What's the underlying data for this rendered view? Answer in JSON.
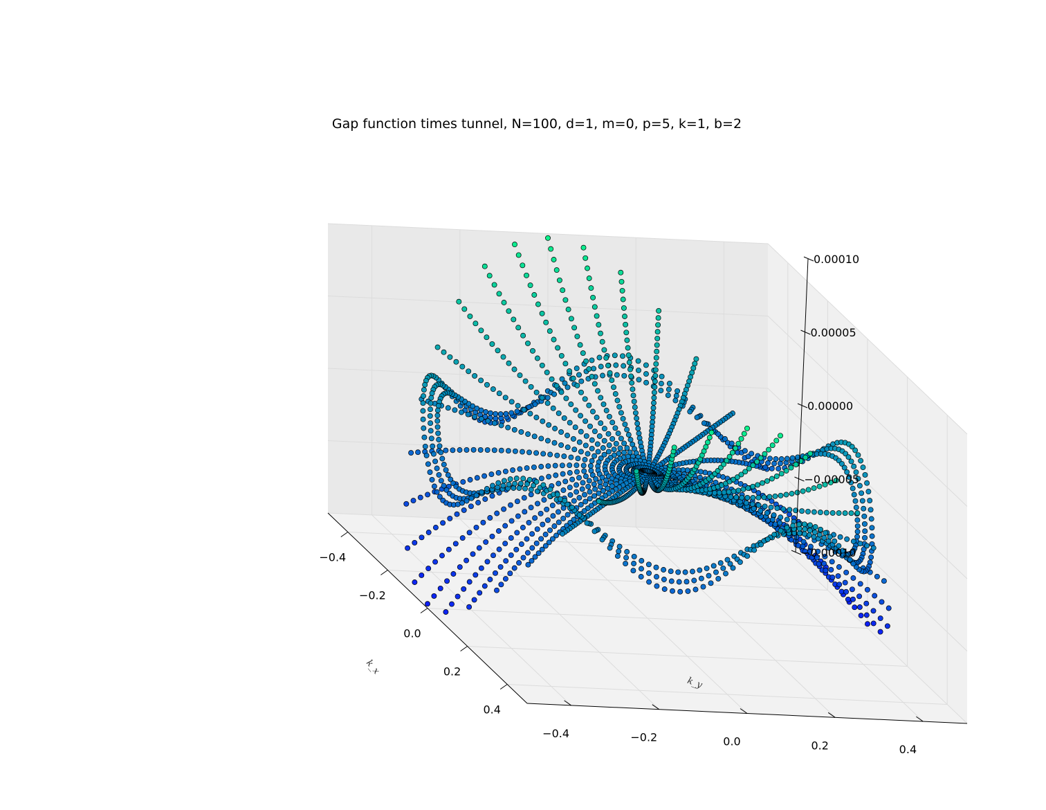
{
  "chart_data": {
    "type": "scatter",
    "projection": "3d",
    "title": "Gap function times tunnel, N=100, d=1, m=0, p=5, k=1, b=2",
    "xlabel": "k_x",
    "ylabel": "k_y",
    "zlabel": "",
    "xlim": [
      -0.5,
      0.5
    ],
    "ylim": [
      -0.5,
      0.5
    ],
    "zlim": [
      -0.0001,
      0.0001
    ],
    "xticks": [
      "−0.4",
      "−0.2",
      "0.0",
      "0.2",
      "0.4"
    ],
    "yticks": [
      "−0.4",
      "−0.2",
      "0.0",
      "0.2",
      "0.4"
    ],
    "zticks": [
      "−0.00010",
      "−0.00005",
      "0.00000",
      "0.00005",
      "0.00010"
    ],
    "grid": true,
    "colormap": "winter",
    "marker_edge_color": "#000000",
    "series": [
      {
        "description_values": "radial spokes: points at k=(r cos θ, r sin θ), r from 0 to 0.5, z = 4e-4 * r^2 * cos(2θ) (saddle surface)",
        "spokes": 40,
        "points_per_spoke": 34,
        "r_range": [
          0,
          0.5
        ],
        "z_peak": 0.0001
      },
      {
        "description_values": "ring of points at radius r=0.45 with short radial width, z oscillating 5 periods around the circle, amplitude 2.5e-5",
        "ring_radius": 0.45,
        "ring_periods": 5,
        "ring_amplitude": 2.5e-05
      }
    ]
  },
  "colors": {
    "pane_left": "#f0f0f0",
    "pane_right": "#e9e9e9",
    "pane_floor": "#f2f2f2",
    "grid": "#dcdcdc",
    "axis": "#000000",
    "cmap_low": "#0000ff",
    "cmap_high": "#00ff80"
  }
}
